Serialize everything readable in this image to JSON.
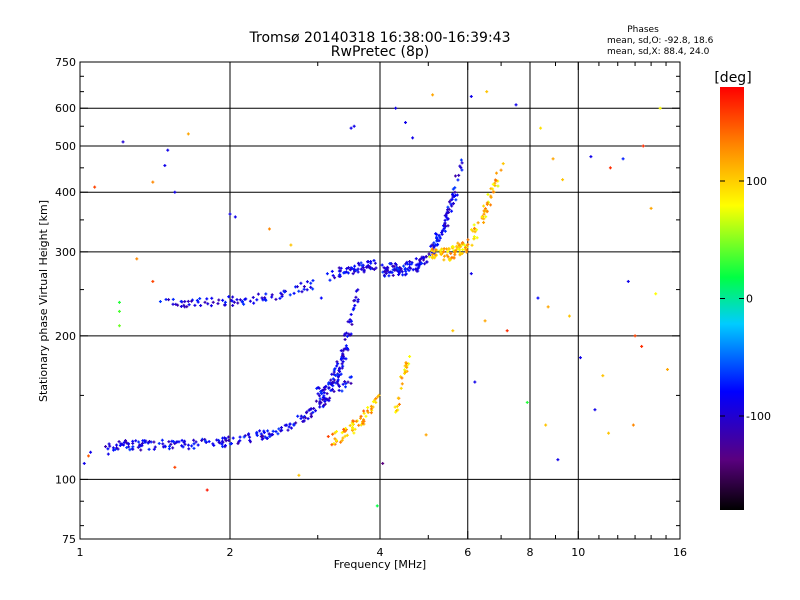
{
  "chart_data": {
    "type": "scatter",
    "title": "Tromsø 20140318 16:38:00-16:39:43",
    "subtitle": "RwPretec (8p)",
    "xlabel": "Frequency [MHz]",
    "ylabel": "Stationary phase Virtual Height [km]",
    "x_scale": "log",
    "y_scale": "log",
    "xlim": [
      1,
      16
    ],
    "ylim": [
      75,
      750
    ],
    "x_ticks": [
      1,
      2,
      4,
      6,
      8,
      10,
      16
    ],
    "y_ticks": [
      75,
      100,
      200,
      300,
      400,
      500,
      600,
      750
    ],
    "grid": true,
    "colorbar": {
      "label": "[deg]",
      "ticks": [
        100,
        0,
        -100
      ],
      "range": [
        -180,
        180
      ],
      "colors": [
        "#000000",
        "#5a0080",
        "#0000ff",
        "#00ccff",
        "#00ff44",
        "#ffff00",
        "#ff8800",
        "#ff0000"
      ]
    },
    "stats": {
      "heading": "Phases",
      "line_o": "mean, sd,O: -92.8, 18.6",
      "line_x": "mean, sd,X: 88.4, 24.0"
    },
    "traces": [
      {
        "name": "",
        "phase": -100,
        "f_start": 1.12,
        "f_end": 3.5,
        "h_base": 118,
        "h_rise": 45,
        "curv": 4.5,
        "spread": 0.03,
        "n": 210
      },
      {
        "name": "",
        "phase": -100,
        "f_start": 1.45,
        "f_end": 3.25,
        "h_base": 235,
        "h_rise": 35,
        "curv": 3.5,
        "spread": 0.03,
        "n": 90
      },
      {
        "name": "",
        "phase": -100,
        "f_start": 3.3,
        "f_end": 3.95,
        "h_base": 272,
        "h_rise": 10,
        "curv": 1.0,
        "spread": 0.03,
        "n": 55
      },
      {
        "name": "",
        "phase": -100,
        "f_start": 4.05,
        "f_end": 5.85,
        "h_base": 275,
        "h_rise": 190,
        "curv": 4.0,
        "spread": 0.04,
        "n": 170
      },
      {
        "name": "",
        "phase": 100,
        "f_start": 5.0,
        "f_end": 7.05,
        "h_base": 295,
        "h_rise": 175,
        "curv": 3.5,
        "spread": 0.04,
        "n": 130
      },
      {
        "name": "",
        "phase": -100,
        "f_start": 3.0,
        "f_end": 3.6,
        "h_base": 150,
        "h_rise": 95,
        "curv": 2.5,
        "spread": 0.05,
        "n": 110
      },
      {
        "name": "",
        "phase": 110,
        "f_start": 3.2,
        "f_end": 3.95,
        "h_base": 122,
        "h_rise": 28,
        "curv": 2.0,
        "spread": 0.04,
        "n": 60
      },
      {
        "name": "",
        "phase": 100,
        "f_start": 4.3,
        "f_end": 4.55,
        "h_base": 140,
        "h_rise": 40,
        "curv": 1.2,
        "spread": 0.04,
        "n": 25
      }
    ],
    "scatter_points": [
      {
        "x": 1.22,
        "y": 510,
        "phase": -110
      },
      {
        "x": 1.5,
        "y": 490,
        "phase": -100
      },
      {
        "x": 1.48,
        "y": 455,
        "phase": -100
      },
      {
        "x": 1.65,
        "y": 530,
        "phase": 110
      },
      {
        "x": 2.0,
        "y": 360,
        "phase": -100
      },
      {
        "x": 2.05,
        "y": 355,
        "phase": -100
      },
      {
        "x": 1.55,
        "y": 400,
        "phase": -100
      },
      {
        "x": 1.4,
        "y": 420,
        "phase": 120
      },
      {
        "x": 1.3,
        "y": 290,
        "phase": 120
      },
      {
        "x": 1.4,
        "y": 260,
        "phase": 150
      },
      {
        "x": 1.2,
        "y": 235,
        "phase": 20
      },
      {
        "x": 1.2,
        "y": 225,
        "phase": 30
      },
      {
        "x": 1.2,
        "y": 210,
        "phase": 40
      },
      {
        "x": 2.65,
        "y": 310,
        "phase": 100
      },
      {
        "x": 3.05,
        "y": 240,
        "phase": -90
      },
      {
        "x": 3.5,
        "y": 545,
        "phase": -100
      },
      {
        "x": 3.55,
        "y": 550,
        "phase": -100
      },
      {
        "x": 4.3,
        "y": 600,
        "phase": -100
      },
      {
        "x": 4.5,
        "y": 560,
        "phase": -100
      },
      {
        "x": 4.65,
        "y": 520,
        "phase": -100
      },
      {
        "x": 5.1,
        "y": 640,
        "phase": 110
      },
      {
        "x": 6.1,
        "y": 635,
        "phase": -100
      },
      {
        "x": 6.55,
        "y": 650,
        "phase": 100
      },
      {
        "x": 7.5,
        "y": 610,
        "phase": -100
      },
      {
        "x": 8.4,
        "y": 545,
        "phase": 90
      },
      {
        "x": 8.9,
        "y": 470,
        "phase": 110
      },
      {
        "x": 9.3,
        "y": 425,
        "phase": 100
      },
      {
        "x": 10.6,
        "y": 475,
        "phase": -100
      },
      {
        "x": 11.6,
        "y": 450,
        "phase": 160
      },
      {
        "x": 12.3,
        "y": 470,
        "phase": -80
      },
      {
        "x": 13.5,
        "y": 500,
        "phase": 160
      },
      {
        "x": 14.0,
        "y": 370,
        "phase": 110
      },
      {
        "x": 14.6,
        "y": 600,
        "phase": 80
      },
      {
        "x": 8.3,
        "y": 240,
        "phase": -90
      },
      {
        "x": 8.7,
        "y": 230,
        "phase": 110
      },
      {
        "x": 10.1,
        "y": 180,
        "phase": -100
      },
      {
        "x": 9.6,
        "y": 220,
        "phase": 100
      },
      {
        "x": 11.2,
        "y": 165,
        "phase": 100
      },
      {
        "x": 12.6,
        "y": 260,
        "phase": -100
      },
      {
        "x": 13.0,
        "y": 200,
        "phase": 150
      },
      {
        "x": 13.4,
        "y": 190,
        "phase": 160
      },
      {
        "x": 14.3,
        "y": 245,
        "phase": 80
      },
      {
        "x": 15.1,
        "y": 170,
        "phase": 110
      },
      {
        "x": 6.1,
        "y": 270,
        "phase": -100
      },
      {
        "x": 5.6,
        "y": 205,
        "phase": 100
      },
      {
        "x": 6.5,
        "y": 215,
        "phase": 110
      },
      {
        "x": 6.2,
        "y": 160,
        "phase": -100
      },
      {
        "x": 7.2,
        "y": 205,
        "phase": 160
      },
      {
        "x": 7.9,
        "y": 145,
        "phase": 20
      },
      {
        "x": 8.6,
        "y": 130,
        "phase": 100
      },
      {
        "x": 9.1,
        "y": 110,
        "phase": -100
      },
      {
        "x": 10.8,
        "y": 140,
        "phase": -100
      },
      {
        "x": 11.5,
        "y": 125,
        "phase": 100
      },
      {
        "x": 12.9,
        "y": 130,
        "phase": 120
      },
      {
        "x": 4.05,
        "y": 108,
        "phase": -150
      },
      {
        "x": 3.95,
        "y": 88,
        "phase": 10
      },
      {
        "x": 4.95,
        "y": 124,
        "phase": 110
      },
      {
        "x": 1.02,
        "y": 108,
        "phase": -100
      },
      {
        "x": 1.05,
        "y": 114,
        "phase": -100
      },
      {
        "x": 1.14,
        "y": 113,
        "phase": -100
      },
      {
        "x": 1.04,
        "y": 112,
        "phase": 140
      },
      {
        "x": 1.8,
        "y": 95,
        "phase": 170
      },
      {
        "x": 1.55,
        "y": 106,
        "phase": 150
      },
      {
        "x": 2.75,
        "y": 102,
        "phase": 100
      },
      {
        "x": 3.15,
        "y": 123,
        "phase": 150
      },
      {
        "x": 1.07,
        "y": 410,
        "phase": 150
      },
      {
        "x": 2.4,
        "y": 335,
        "phase": 120
      }
    ]
  }
}
